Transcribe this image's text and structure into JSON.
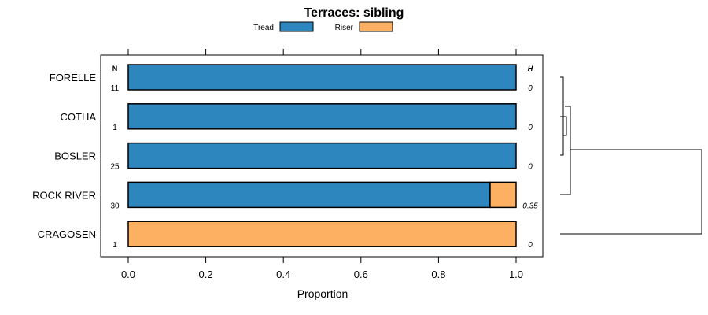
{
  "chart_data": {
    "type": "bar",
    "stacked": true,
    "orientation": "horizontal",
    "title": "Terraces: sibling",
    "xlabel": "Proportion",
    "ylabel": "",
    "xlim": [
      0,
      1
    ],
    "x_ticks": [
      "0.0",
      "0.2",
      "0.4",
      "0.6",
      "0.8",
      "1.0"
    ],
    "x_tick_values": [
      0,
      0.2,
      0.4,
      0.6,
      0.8,
      1.0
    ],
    "legend_position": "top",
    "n_header": "N",
    "h_header": "H",
    "colors": {
      "Tread": "#2e86bf",
      "Riser": "#fdaf62"
    },
    "categories": [
      "FORELLE",
      "COTHA",
      "BOSLER",
      "ROCK RIVER",
      "CRAGOSEN"
    ],
    "series": [
      {
        "name": "Tread",
        "values": [
          1.0,
          1.0,
          1.0,
          0.933,
          0.0
        ]
      },
      {
        "name": "Riser",
        "values": [
          0.0,
          0.0,
          0.0,
          0.067,
          1.0
        ]
      }
    ],
    "n_values": [
      "11",
      "1",
      "25",
      "30",
      "1"
    ],
    "h_values": [
      "0",
      "0",
      "0",
      "0.35",
      "0"
    ],
    "dendrogram": "right"
  }
}
